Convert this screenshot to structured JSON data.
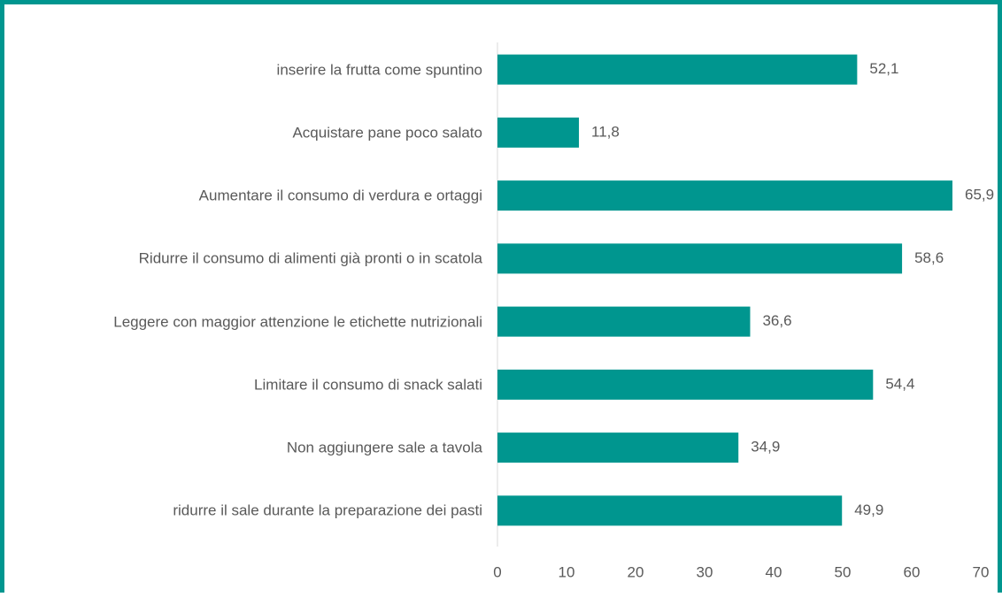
{
  "chart_data": {
    "type": "bar",
    "orientation": "horizontal",
    "categories": [
      "inserire la frutta come spuntino",
      "Acquistare pane poco salato",
      "Aumentare il consumo di verdura e ortaggi",
      "Ridurre il consumo di alimenti già pronti o in scatola",
      "Leggere con maggior attenzione le etichette nutrizionali",
      "Limitare il consumo di snack salati",
      "Non aggiungere sale a tavola",
      "ridurre il sale durante  la preparazione dei pasti"
    ],
    "values": [
      52.1,
      11.8,
      65.9,
      58.6,
      36.6,
      54.4,
      34.9,
      49.9
    ],
    "value_labels": [
      "52,1",
      "11,8",
      "65,9",
      "58,6",
      "36,6",
      "54,4",
      "34,9",
      "49,9"
    ],
    "color": "#00968f",
    "xlim": [
      0,
      70
    ],
    "xticks": [
      0,
      10,
      20,
      30,
      40,
      50,
      60,
      70
    ],
    "grid": false
  }
}
